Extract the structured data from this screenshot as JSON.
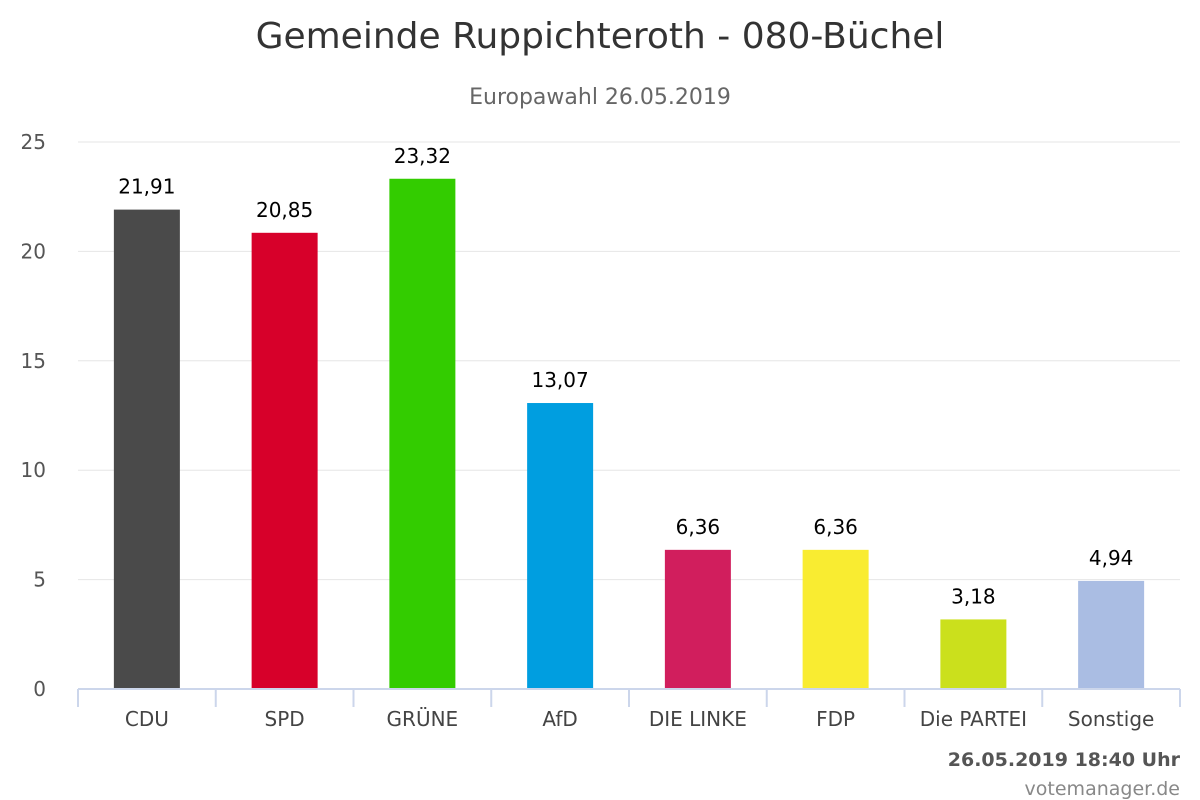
{
  "chart_data": {
    "type": "bar",
    "title": "Gemeinde Ruppichteroth - 080-Büchel",
    "subtitle": "Europawahl 26.05.2019",
    "categories": [
      "CDU",
      "SPD",
      "GRÜNE",
      "AfD",
      "DIE LINKE",
      "FDP",
      "Die PARTEI",
      "Sonstige"
    ],
    "values": [
      21.91,
      20.85,
      23.32,
      13.07,
      6.36,
      6.36,
      3.18,
      4.94
    ],
    "value_labels": [
      "21,91",
      "20,85",
      "23,32",
      "13,07",
      "6,36",
      "6,36",
      "3,18",
      "4,94"
    ],
    "colors": [
      "#4a4a4a",
      "#d7002a",
      "#33cc00",
      "#009ee0",
      "#d11e5d",
      "#f9ec31",
      "#cbe01c",
      "#aabde3"
    ],
    "ylim": [
      0,
      25
    ],
    "yticks": [
      0,
      5,
      10,
      15,
      20,
      25
    ],
    "grid": true,
    "legend": false
  },
  "footer": {
    "timestamp": "26.05.2019 18:40 Uhr",
    "credit": "votemanager.de"
  }
}
